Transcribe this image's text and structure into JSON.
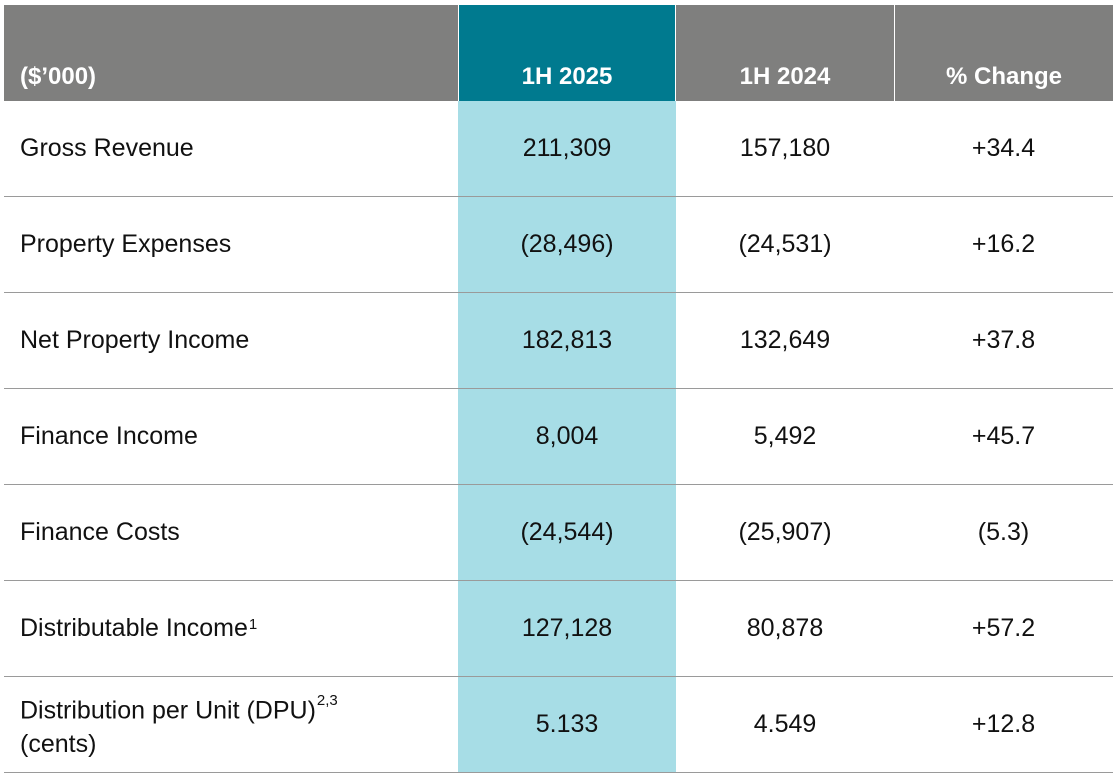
{
  "header": {
    "label": "($’000)",
    "col_a": "1H 2025",
    "col_b": "1H 2024",
    "col_c": "% Change"
  },
  "rows": [
    {
      "label": "Gross Revenue",
      "sup": "",
      "a": "211,309",
      "b": "157,180",
      "c": "+34.4"
    },
    {
      "label": "Property Expenses",
      "sup": "",
      "a": "(28,496)",
      "b": "(24,531)",
      "c": "+16.2"
    },
    {
      "label": "Net Property Income",
      "sup": "",
      "a": "182,813",
      "b": "132,649",
      "c": "+37.8"
    },
    {
      "label": "Finance Income",
      "sup": "",
      "a": "8,004",
      "b": "5,492",
      "c": "+45.7"
    },
    {
      "label": "Finance Costs",
      "sup": "",
      "a": "(24,544)",
      "b": "(25,907)",
      "c": "(5.3)"
    },
    {
      "label": "Distributable Income",
      "sup": "1",
      "a": "127,128",
      "b": "80,878",
      "c": "+57.2"
    },
    {
      "label": "Distribution per Unit (DPU)",
      "sup": "2,3",
      "label2": "(cents)",
      "a": "5.133",
      "b": "4.549",
      "c": "+12.8"
    }
  ],
  "colors": {
    "header_bg": "#7f7f7e",
    "highlight_header": "#007a8f",
    "highlight_column": "#a7dde6",
    "row_divider": "#9a9a9a"
  }
}
